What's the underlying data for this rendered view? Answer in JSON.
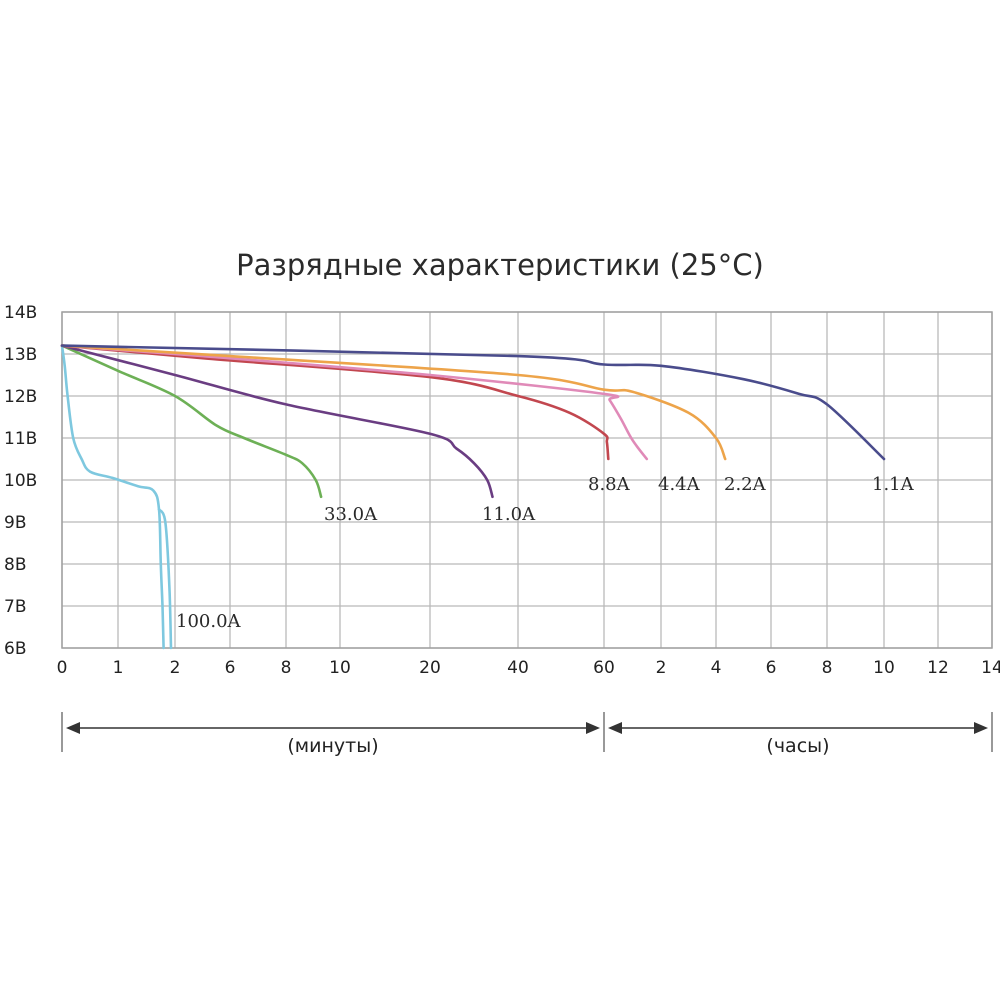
{
  "chart_data": {
    "type": "line",
    "title": "Разрядные характеристики (25°C)",
    "y_ticks": [
      "14В",
      "13В",
      "12В",
      "11В",
      "10В",
      "9В",
      "8В",
      "7В",
      "6В"
    ],
    "ylim": [
      6,
      14
    ],
    "x_ticks": [
      "0",
      "1",
      "2",
      "6",
      "8",
      "10",
      "20",
      "40",
      "60",
      "2",
      "4",
      "6",
      "8",
      "10",
      "12",
      "14"
    ],
    "x_scale": "segmented: minutes 0–60, then hours 1–14 (non-linear tick spacing)",
    "unit_ranges": [
      {
        "label": "(минуты)",
        "from_tick": 0,
        "to_tick": 8
      },
      {
        "label": "(часы)",
        "from_tick": 8,
        "to_tick": 15
      }
    ],
    "grid": true,
    "series": [
      {
        "name": "100.0A",
        "color": "#7ec8df",
        "points": [
          [
            0,
            13.2
          ],
          [
            0.05,
            12.7
          ],
          [
            0.1,
            12.0
          ],
          [
            0.2,
            11.0
          ],
          [
            0.35,
            10.5
          ],
          [
            0.5,
            10.2
          ],
          [
            0.9,
            10.05
          ],
          [
            1.35,
            9.85
          ],
          [
            1.62,
            9.75
          ],
          [
            1.72,
            9.3
          ],
          [
            1.75,
            8.0
          ],
          [
            1.78,
            7.0
          ],
          [
            1.8,
            6.0
          ]
        ],
        "points2": [
          [
            1.72,
            9.3
          ],
          [
            1.83,
            9.0
          ],
          [
            1.9,
            7.5
          ],
          [
            1.93,
            6.0
          ]
        ]
      },
      {
        "name": "33.0A",
        "color": "#6db056",
        "points": [
          [
            0,
            13.2
          ],
          [
            1,
            12.6
          ],
          [
            2,
            12.0
          ],
          [
            5,
            11.3
          ],
          [
            6.5,
            11.0
          ],
          [
            8,
            10.6
          ],
          [
            8.6,
            10.4
          ],
          [
            9.1,
            10.0
          ],
          [
            9.3,
            9.6
          ]
        ]
      },
      {
        "name": "11.0A",
        "color": "#6a3d82",
        "points": [
          [
            0,
            13.2
          ],
          [
            2,
            12.5
          ],
          [
            8,
            11.8
          ],
          [
            20,
            11.1
          ],
          [
            26,
            10.75
          ],
          [
            30,
            10.4
          ],
          [
            33,
            10.0
          ],
          [
            34.2,
            9.6
          ]
        ]
      },
      {
        "name": "8.8A",
        "color": "#c2474f",
        "points": [
          [
            0,
            13.2
          ],
          [
            4,
            12.9
          ],
          [
            20,
            12.45
          ],
          [
            40,
            12.0
          ],
          [
            52,
            11.6
          ],
          [
            60,
            11.1
          ],
          [
            63,
            10.9
          ],
          [
            64.5,
            10.5
          ]
        ]
      },
      {
        "name": "4.4A",
        "color": "#e08ab8",
        "points": [
          [
            0,
            13.2
          ],
          [
            4,
            12.95
          ],
          [
            20,
            12.5
          ],
          [
            60,
            12.05
          ],
          [
            66,
            11.9
          ],
          [
            78,
            11.45
          ],
          [
            90,
            10.95
          ],
          [
            105,
            10.5
          ]
        ]
      },
      {
        "name": "2.2A",
        "color": "#eda44a",
        "points": [
          [
            0,
            13.2
          ],
          [
            6,
            12.95
          ],
          [
            40,
            12.5
          ],
          [
            60,
            12.15
          ],
          [
            90,
            12.1
          ],
          [
            180,
            11.6
          ],
          [
            240,
            11.0
          ],
          [
            260,
            10.5
          ]
        ]
      },
      {
        "name": "1.1A",
        "color": "#4a4c8c",
        "points": [
          [
            0,
            13.2
          ],
          [
            40,
            12.95
          ],
          [
            60,
            12.75
          ],
          [
            120,
            12.72
          ],
          [
            300,
            12.4
          ],
          [
            420,
            12.05
          ],
          [
            480,
            11.8
          ],
          [
            600,
            10.5
          ]
        ]
      }
    ],
    "series_labels": [
      "100.0A",
      "33.0A",
      "11.0A",
      "8.8A",
      "4.4A",
      "2.2A",
      "1.1A"
    ],
    "units": [
      "(минуты)",
      "(часы)"
    ]
  }
}
